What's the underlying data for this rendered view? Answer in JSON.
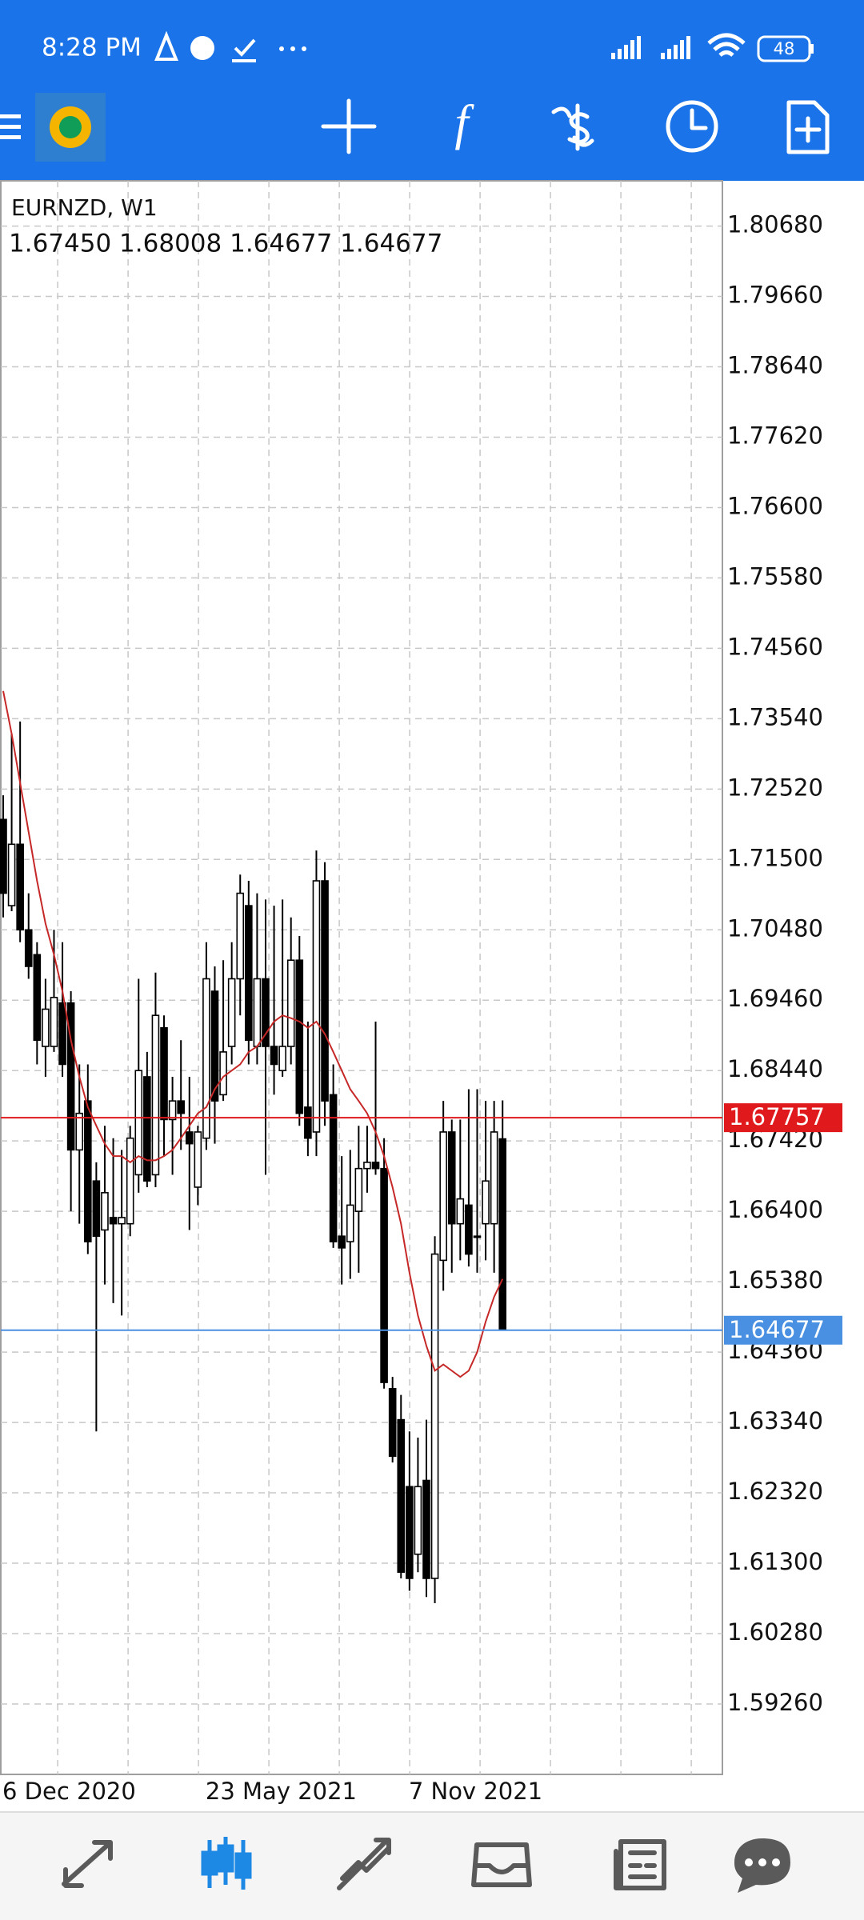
{
  "status_bar": {
    "time": "8:28 PM",
    "battery": "48"
  },
  "chart_data": {
    "type": "candlestick",
    "title": "EURNZD, W1",
    "subtitle": "1.67450 1.68008 1.64677 1.64677",
    "categories": [
      "6 Dec 2020",
      null,
      null,
      null,
      null,
      null,
      null,
      null,
      null,
      null,
      null,
      null,
      null,
      null,
      null,
      null,
      null,
      null,
      null,
      null,
      null,
      null,
      null,
      null,
      "23 May 2021",
      null,
      null,
      null,
      null,
      null,
      null,
      null,
      null,
      null,
      null,
      null,
      null,
      null,
      null,
      null,
      null,
      null,
      null,
      null,
      null,
      null,
      null,
      null,
      "7 Nov 2021",
      null,
      null,
      null,
      null,
      null,
      null,
      null,
      null,
      null,
      null,
      null
    ],
    "open": [
      1.7208,
      1.7083,
      1.7172,
      1.7048,
      1.7012,
      1.6879,
      1.6879,
      1.6942,
      1.6942,
      1.6729,
      1.68,
      1.6684,
      1.6613,
      1.6631,
      1.6622,
      1.6622,
      1.6693,
      1.6835,
      1.6693,
      1.6906,
      1.6773,
      1.68,
      1.6755,
      1.6675,
      1.6746,
      1.6959,
      1.6809,
      1.6879,
      1.6977,
      1.7083,
      1.6879,
      1.6977,
      1.6879,
      1.6844,
      1.6879,
      1.7004,
      1.6791,
      1.6755,
      1.7119,
      1.6809,
      1.6604,
      1.6596,
      1.664,
      1.6702,
      1.6711,
      1.6702,
      1.6383,
      1.6338,
      1.6241,
      1.6143,
      1.625,
      1.6108,
      1.6569,
      1.6755,
      1.6622,
      1.6649,
      1.6604,
      1.6622,
      1.6622,
      1.6745
    ],
    "high": [
      1.7243,
      1.7332,
      1.735,
      1.7101,
      1.703,
      1.6977,
      1.7048,
      1.703,
      1.6959,
      1.6853,
      1.6853,
      1.6711,
      1.6764,
      1.6746,
      1.6729,
      1.6764,
      1.6977,
      1.6871,
      1.6986,
      1.6924,
      1.6835,
      1.6888,
      1.6835,
      1.6764,
      1.703,
      1.6995,
      1.7004,
      1.703,
      1.7128,
      1.7119,
      1.7101,
      1.7092,
      1.7083,
      1.7092,
      1.7066,
      1.7039,
      1.6915,
      1.7163,
      1.7146,
      1.6853,
      1.672,
      1.6729,
      1.6764,
      1.6764,
      1.6915,
      1.6746,
      1.64,
      1.6374,
      1.6321,
      1.6312,
      1.6338,
      1.6604,
      1.68,
      1.6773,
      1.6773,
      1.6817,
      1.6817,
      1.68,
      1.68,
      1.68008
    ],
    "low": [
      1.7066,
      1.7075,
      1.703,
      1.6977,
      1.6853,
      1.6835,
      1.6871,
      1.6835,
      1.664,
      1.6622,
      1.6578,
      1.6321,
      1.6534,
      1.6507,
      1.6489,
      1.6604,
      1.6667,
      1.6675,
      1.6675,
      1.672,
      1.6693,
      1.6729,
      1.6613,
      1.6649,
      1.6729,
      1.6738,
      1.68,
      1.6853,
      1.6924,
      1.6853,
      1.6853,
      1.6693,
      1.6809,
      1.6835,
      1.6853,
      1.6764,
      1.672,
      1.672,
      1.6764,
      1.6587,
      1.6534,
      1.6542,
      1.6551,
      1.6667,
      1.6693,
      1.6383,
      1.6276,
      1.6108,
      1.609,
      1.6117,
      1.6081,
      1.6072,
      1.6525,
      1.6551,
      1.6569,
      1.656,
      1.6551,
      1.6569,
      1.6551,
      1.64677
    ],
    "close": [
      1.7101,
      1.7172,
      1.7048,
      1.6995,
      1.6888,
      1.6933,
      1.695,
      1.6853,
      1.6729,
      1.6782,
      1.6596,
      1.6604,
      1.6667,
      1.6622,
      1.6631,
      1.6746,
      1.6844,
      1.6684,
      1.6924,
      1.6773,
      1.68,
      1.6782,
      1.6738,
      1.6755,
      1.6977,
      1.68,
      1.6871,
      1.6977,
      1.7101,
      1.6888,
      1.6977,
      1.6879,
      1.6853,
      1.6879,
      1.7004,
      1.6782,
      1.6746,
      1.7119,
      1.68,
      1.6596,
      1.6587,
      1.6649,
      1.6702,
      1.6711,
      1.6702,
      1.6392,
      1.6285,
      1.6117,
      1.6108,
      1.6241,
      1.6108,
      1.6578,
      1.6755,
      1.6622,
      1.6658,
      1.6578,
      1.6604,
      1.6684,
      1.6755,
      1.64677
    ],
    "up_color": "#ffffff",
    "down_color": "#000000",
    "ma": {
      "color": "#c62828",
      "values": [
        1.7394,
        1.7332,
        1.7261,
        1.719,
        1.7119,
        1.7057,
        1.7012,
        1.6959,
        1.6888,
        1.6835,
        1.6791,
        1.6764,
        1.6738,
        1.672,
        1.672,
        1.6711,
        1.672,
        1.6714,
        1.6714,
        1.672,
        1.6729,
        1.6746,
        1.6764,
        1.6782,
        1.6791,
        1.6817,
        1.6835,
        1.6844,
        1.6853,
        1.6871,
        1.6879,
        1.6897,
        1.6915,
        1.6924,
        1.692,
        1.6915,
        1.6906,
        1.6915,
        1.6897,
        1.6871,
        1.6844,
        1.6817,
        1.68,
        1.6782,
        1.6755,
        1.672,
        1.6675,
        1.6622,
        1.6551,
        1.6489,
        1.6445,
        1.6409,
        1.6418,
        1.6409,
        1.64,
        1.6409,
        1.6436,
        1.648,
        1.6516,
        1.6542
      ]
    },
    "price_lines": [
      {
        "value": 1.67757,
        "color": "#e0191c"
      },
      {
        "value": 1.64677,
        "color": "#4a90e2"
      }
    ],
    "ylim": [
      1.58239,
      1.81336
    ],
    "yticks": [
      {
        "value": 1.8068,
        "label": "1.80680"
      },
      {
        "value": 1.7966,
        "label": "1.79660"
      },
      {
        "value": 1.7864,
        "label": "1.78640"
      },
      {
        "value": 1.7762,
        "label": "1.77620"
      },
      {
        "value": 1.766,
        "label": "1.76600"
      },
      {
        "value": 1.7558,
        "label": "1.75580"
      },
      {
        "value": 1.7456,
        "label": "1.74560"
      },
      {
        "value": 1.7354,
        "label": "1.73540"
      },
      {
        "value": 1.7252,
        "label": "1.72520"
      },
      {
        "value": 1.715,
        "label": "1.71500"
      },
      {
        "value": 1.7048,
        "label": "1.70480"
      },
      {
        "value": 1.6946,
        "label": "1.69460"
      },
      {
        "value": 1.6844,
        "label": "1.68440"
      },
      {
        "value": 1.6742,
        "label": "1.67420"
      },
      {
        "value": 1.664,
        "label": "1.66400"
      },
      {
        "value": 1.6538,
        "label": "1.65380"
      },
      {
        "value": 1.6436,
        "label": "1.64360"
      },
      {
        "value": 1.6334,
        "label": "1.63340"
      },
      {
        "value": 1.6232,
        "label": "1.62320"
      },
      {
        "value": 1.613,
        "label": "1.61300"
      },
      {
        "value": 1.6028,
        "label": "1.60280"
      },
      {
        "value": 1.5926,
        "label": "1.59260"
      }
    ],
    "grid": true
  }
}
